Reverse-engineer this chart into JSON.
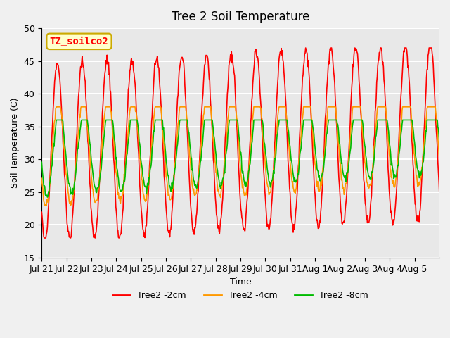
{
  "title": "Tree 2 Soil Temperature",
  "ylabel": "Soil Temperature (C)",
  "xlabel": "Time",
  "ylim": [
    15,
    50
  ],
  "yticks": [
    15,
    20,
    25,
    30,
    35,
    40,
    45,
    50
  ],
  "annotation_text": "TZ_soilco2",
  "annotation_bg": "#ffffcc",
  "annotation_border": "#ccaa00",
  "plot_bg": "#e8e8e8",
  "grid_color": "#ffffff",
  "xtick_labels": [
    "Jul 21",
    "Jul 22",
    "Jul 23",
    "Jul 24",
    "Jul 25",
    "Jul 26",
    "Jul 27",
    "Jul 28",
    "Jul 29",
    "Jul 30",
    "Jul 31",
    "Aug 1",
    "Aug 2",
    "Aug 3",
    "Aug 4",
    "Aug 5"
  ],
  "line_colors": {
    "2cm": "#ff0000",
    "4cm": "#ff9900",
    "8cm": "#00bb00"
  },
  "line_widths": {
    "2cm": 1.2,
    "4cm": 1.2,
    "8cm": 1.2
  },
  "legend_labels": [
    "Tree2 -2cm",
    "Tree2 -4cm",
    "Tree2 -8cm"
  ],
  "n_days": 16,
  "ppd": 48
}
